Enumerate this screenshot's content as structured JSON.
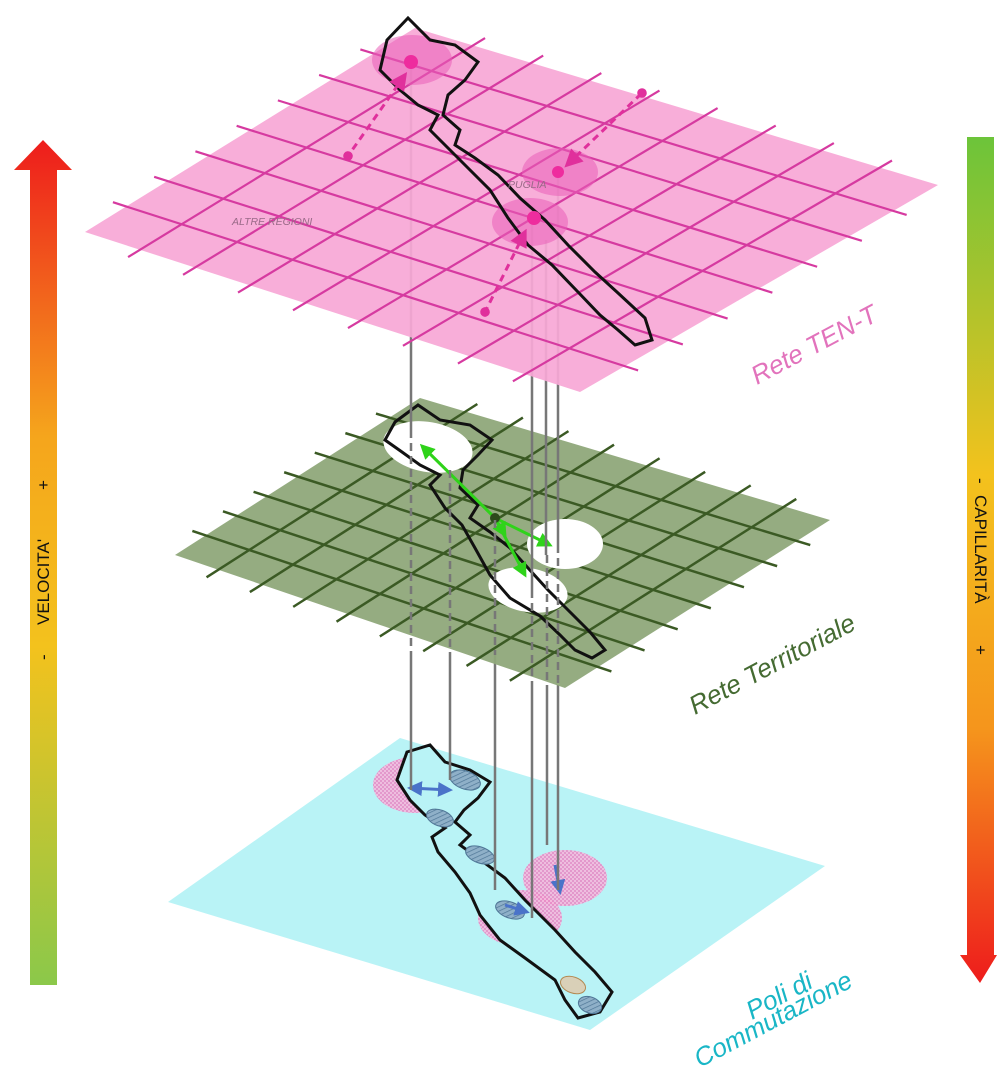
{
  "layers": {
    "ten_t": {
      "label": "Rete TEN-T",
      "color": "#f7a8d6",
      "line_color": "#d63aa0"
    },
    "territorial": {
      "label": "Rete Territoriale",
      "color": "#8fa87a",
      "line_color": "#3b5a24"
    },
    "poles": {
      "label_line1": "Poli di",
      "label_line2": "Commutazione",
      "color": "#b9f3f6",
      "text_color": "#19b6c6"
    }
  },
  "region_labels": {
    "puglia": "PUGLIA",
    "other_regions": "ALTRE REGIONI"
  },
  "left_axis": {
    "minus": "-",
    "label": "VELOCITA'",
    "plus": "+",
    "gradient_top": "#ee1c1c",
    "gradient_bottom": "#8bc84a"
  },
  "right_axis": {
    "minus": "-",
    "label": "CAPILLARITÀ",
    "plus": "+",
    "gradient_top": "#6cc43a",
    "gradient_bottom": "#ee1c1c"
  },
  "colors": {
    "hub_pink": "#ee2c9e",
    "arrow_green": "#2fd31a",
    "arrow_blue": "#4a73c9",
    "connector": "#777777",
    "outline": "#111111"
  }
}
